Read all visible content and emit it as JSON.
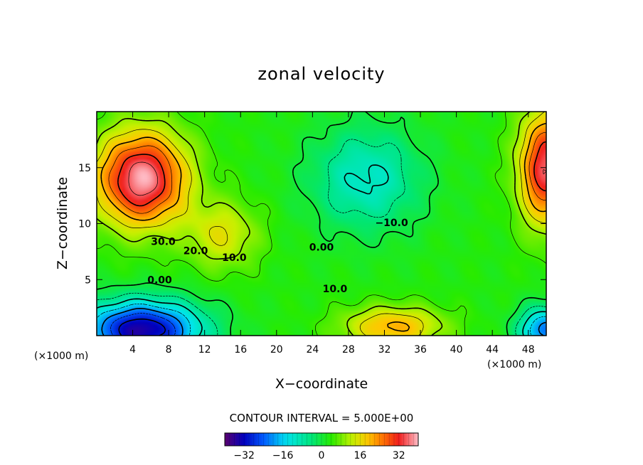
{
  "chart_data": {
    "type": "heatmap",
    "title": "zonal velocity",
    "xlabel": "X−coordinate",
    "ylabel": "Z−coordinate",
    "x_unit_left": "(×1000 m)",
    "x_unit_right": "(×1000 m)",
    "xlim": [
      0,
      50
    ],
    "ylim": [
      0,
      20
    ],
    "x_ticks": [
      4,
      8,
      12,
      16,
      20,
      24,
      28,
      32,
      36,
      40,
      44,
      48
    ],
    "y_ticks": [
      5,
      10,
      15
    ],
    "contour_interval_text": "CONTOUR INTERVAL = 5.000E+00",
    "contour_interval": 5,
    "contour_labels": [
      {
        "text": "30.0",
        "x": 7.4,
        "y": 8.4
      },
      {
        "text": "20.0",
        "x": 11.0,
        "y": 7.6
      },
      {
        "text": "10.0",
        "x": 15.3,
        "y": 7.0
      },
      {
        "text": "0.00",
        "x": 7.0,
        "y": 5.0
      },
      {
        "text": "0.00",
        "x": 25.0,
        "y": 7.9
      },
      {
        "text": "10.0",
        "x": 26.5,
        "y": 4.2
      },
      {
        "text": "−10.0",
        "x": 32.8,
        "y": 10.1
      }
    ],
    "colorbar": {
      "range": [
        -40,
        40
      ],
      "ticks": [
        "−32",
        "−16",
        "0",
        "16",
        "32"
      ],
      "tick_values": [
        -32,
        -16,
        0,
        16,
        32
      ]
    },
    "features": [
      {
        "kind": "max",
        "x": 5,
        "y": 14,
        "value": 36,
        "sx": 5.0,
        "sy": 4.2
      },
      {
        "kind": "min",
        "x": 5,
        "y": 0.5,
        "value": -38,
        "sx": 6.5,
        "sy": 2.6
      },
      {
        "kind": "min",
        "x": 30,
        "y": 14,
        "value": -14,
        "sx": 6.0,
        "sy": 4.5
      },
      {
        "kind": "max",
        "x": 33,
        "y": 0.8,
        "value": 18,
        "sx": 5.5,
        "sy": 1.8
      },
      {
        "kind": "max",
        "x": 50,
        "y": 15,
        "value": 32,
        "sx": 3.0,
        "sy": 5.0
      },
      {
        "kind": "min",
        "x": 50,
        "y": 0.5,
        "value": -26,
        "sx": 3.0,
        "sy": 2.0
      },
      {
        "kind": "max",
        "x": 14,
        "y": 9,
        "value": 12,
        "sx": 4.0,
        "sy": 3.0
      }
    ]
  }
}
